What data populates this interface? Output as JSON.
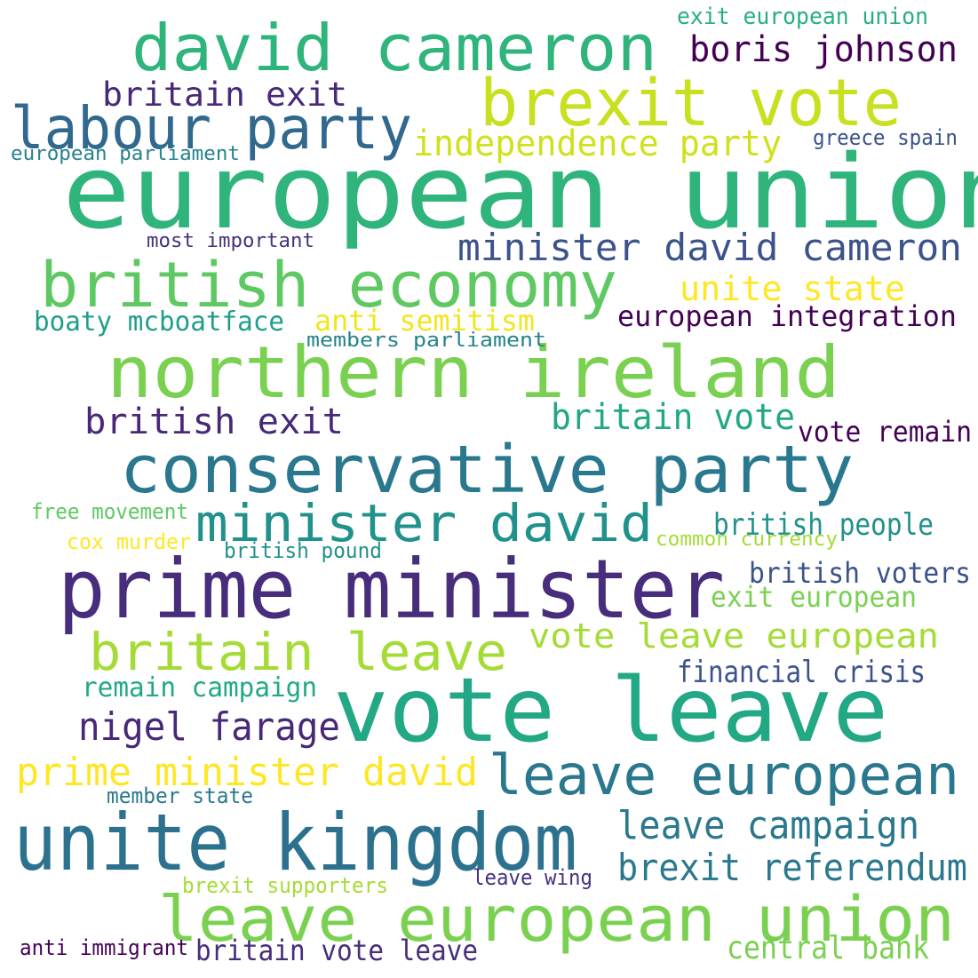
{
  "words": [
    {
      "text": "european union",
      "color": "#2fb47c"
    },
    {
      "text": "david cameron",
      "color": "#2fb47c"
    },
    {
      "text": "brexit vote",
      "color": "#c8e020"
    },
    {
      "text": "labour party",
      "color": "#31688e"
    },
    {
      "text": "northern ireland",
      "color": "#7ad151"
    },
    {
      "text": "british economy",
      "color": "#5ec962"
    },
    {
      "text": "conservative party",
      "color": "#2a788e"
    },
    {
      "text": "prime minister",
      "color": "#472d7b"
    },
    {
      "text": "minister david",
      "color": "#21918c"
    },
    {
      "text": "vote leave",
      "color": "#22a884"
    },
    {
      "text": "britain leave",
      "color": "#a5db36"
    },
    {
      "text": "leave european",
      "color": "#2a788e"
    },
    {
      "text": "unite kingdom",
      "color": "#2c728e"
    },
    {
      "text": "leave european union",
      "color": "#7ad151"
    },
    {
      "text": "boris johnson",
      "color": "#440154"
    },
    {
      "text": "britain exit",
      "color": "#482878"
    },
    {
      "text": "independence party",
      "color": "#d0e11c"
    },
    {
      "text": "exit european union",
      "color": "#29af7f"
    },
    {
      "text": "greece spain",
      "color": "#3b528b"
    },
    {
      "text": "european parliament",
      "color": "#26828e"
    },
    {
      "text": "minister david cameron",
      "color": "#3b528b"
    },
    {
      "text": "most important",
      "color": "#46327e"
    },
    {
      "text": "unite state",
      "color": "#fde725"
    },
    {
      "text": "anti semitism",
      "color": "#f1e51d"
    },
    {
      "text": "european integration",
      "color": "#440154"
    },
    {
      "text": "boaty mcboatface",
      "color": "#1f9e89"
    },
    {
      "text": "members parliament",
      "color": "#26828e"
    },
    {
      "text": "british exit",
      "color": "#482878"
    },
    {
      "text": "britain vote",
      "color": "#22a884"
    },
    {
      "text": "vote remain",
      "color": "#440154"
    },
    {
      "text": "free movement",
      "color": "#5ec962"
    },
    {
      "text": "cox murder",
      "color": "#fde725"
    },
    {
      "text": "british pound",
      "color": "#21918c"
    },
    {
      "text": "british people",
      "color": "#21918c"
    },
    {
      "text": "common currency",
      "color": "#a5db36"
    },
    {
      "text": "british voters",
      "color": "#3b528b"
    },
    {
      "text": "exit european",
      "color": "#7ad151"
    },
    {
      "text": "vote leave european",
      "color": "#a5db36"
    },
    {
      "text": "remain campaign",
      "color": "#22a884"
    },
    {
      "text": "financial crisis",
      "color": "#3b528b"
    },
    {
      "text": "nigel farage",
      "color": "#482878"
    },
    {
      "text": "prime minister david",
      "color": "#fde725"
    },
    {
      "text": "member state",
      "color": "#2a788e"
    },
    {
      "text": "leave campaign",
      "color": "#2a788e"
    },
    {
      "text": "brexit referendum",
      "color": "#2a788e"
    },
    {
      "text": "brexit supporters",
      "color": "#a5db36"
    },
    {
      "text": "leave wing",
      "color": "#46327e"
    },
    {
      "text": "anti immigrant",
      "color": "#440154"
    },
    {
      "text": "britain vote leave",
      "color": "#472d7b"
    },
    {
      "text": "central bank",
      "color": "#7ad151"
    }
  ]
}
